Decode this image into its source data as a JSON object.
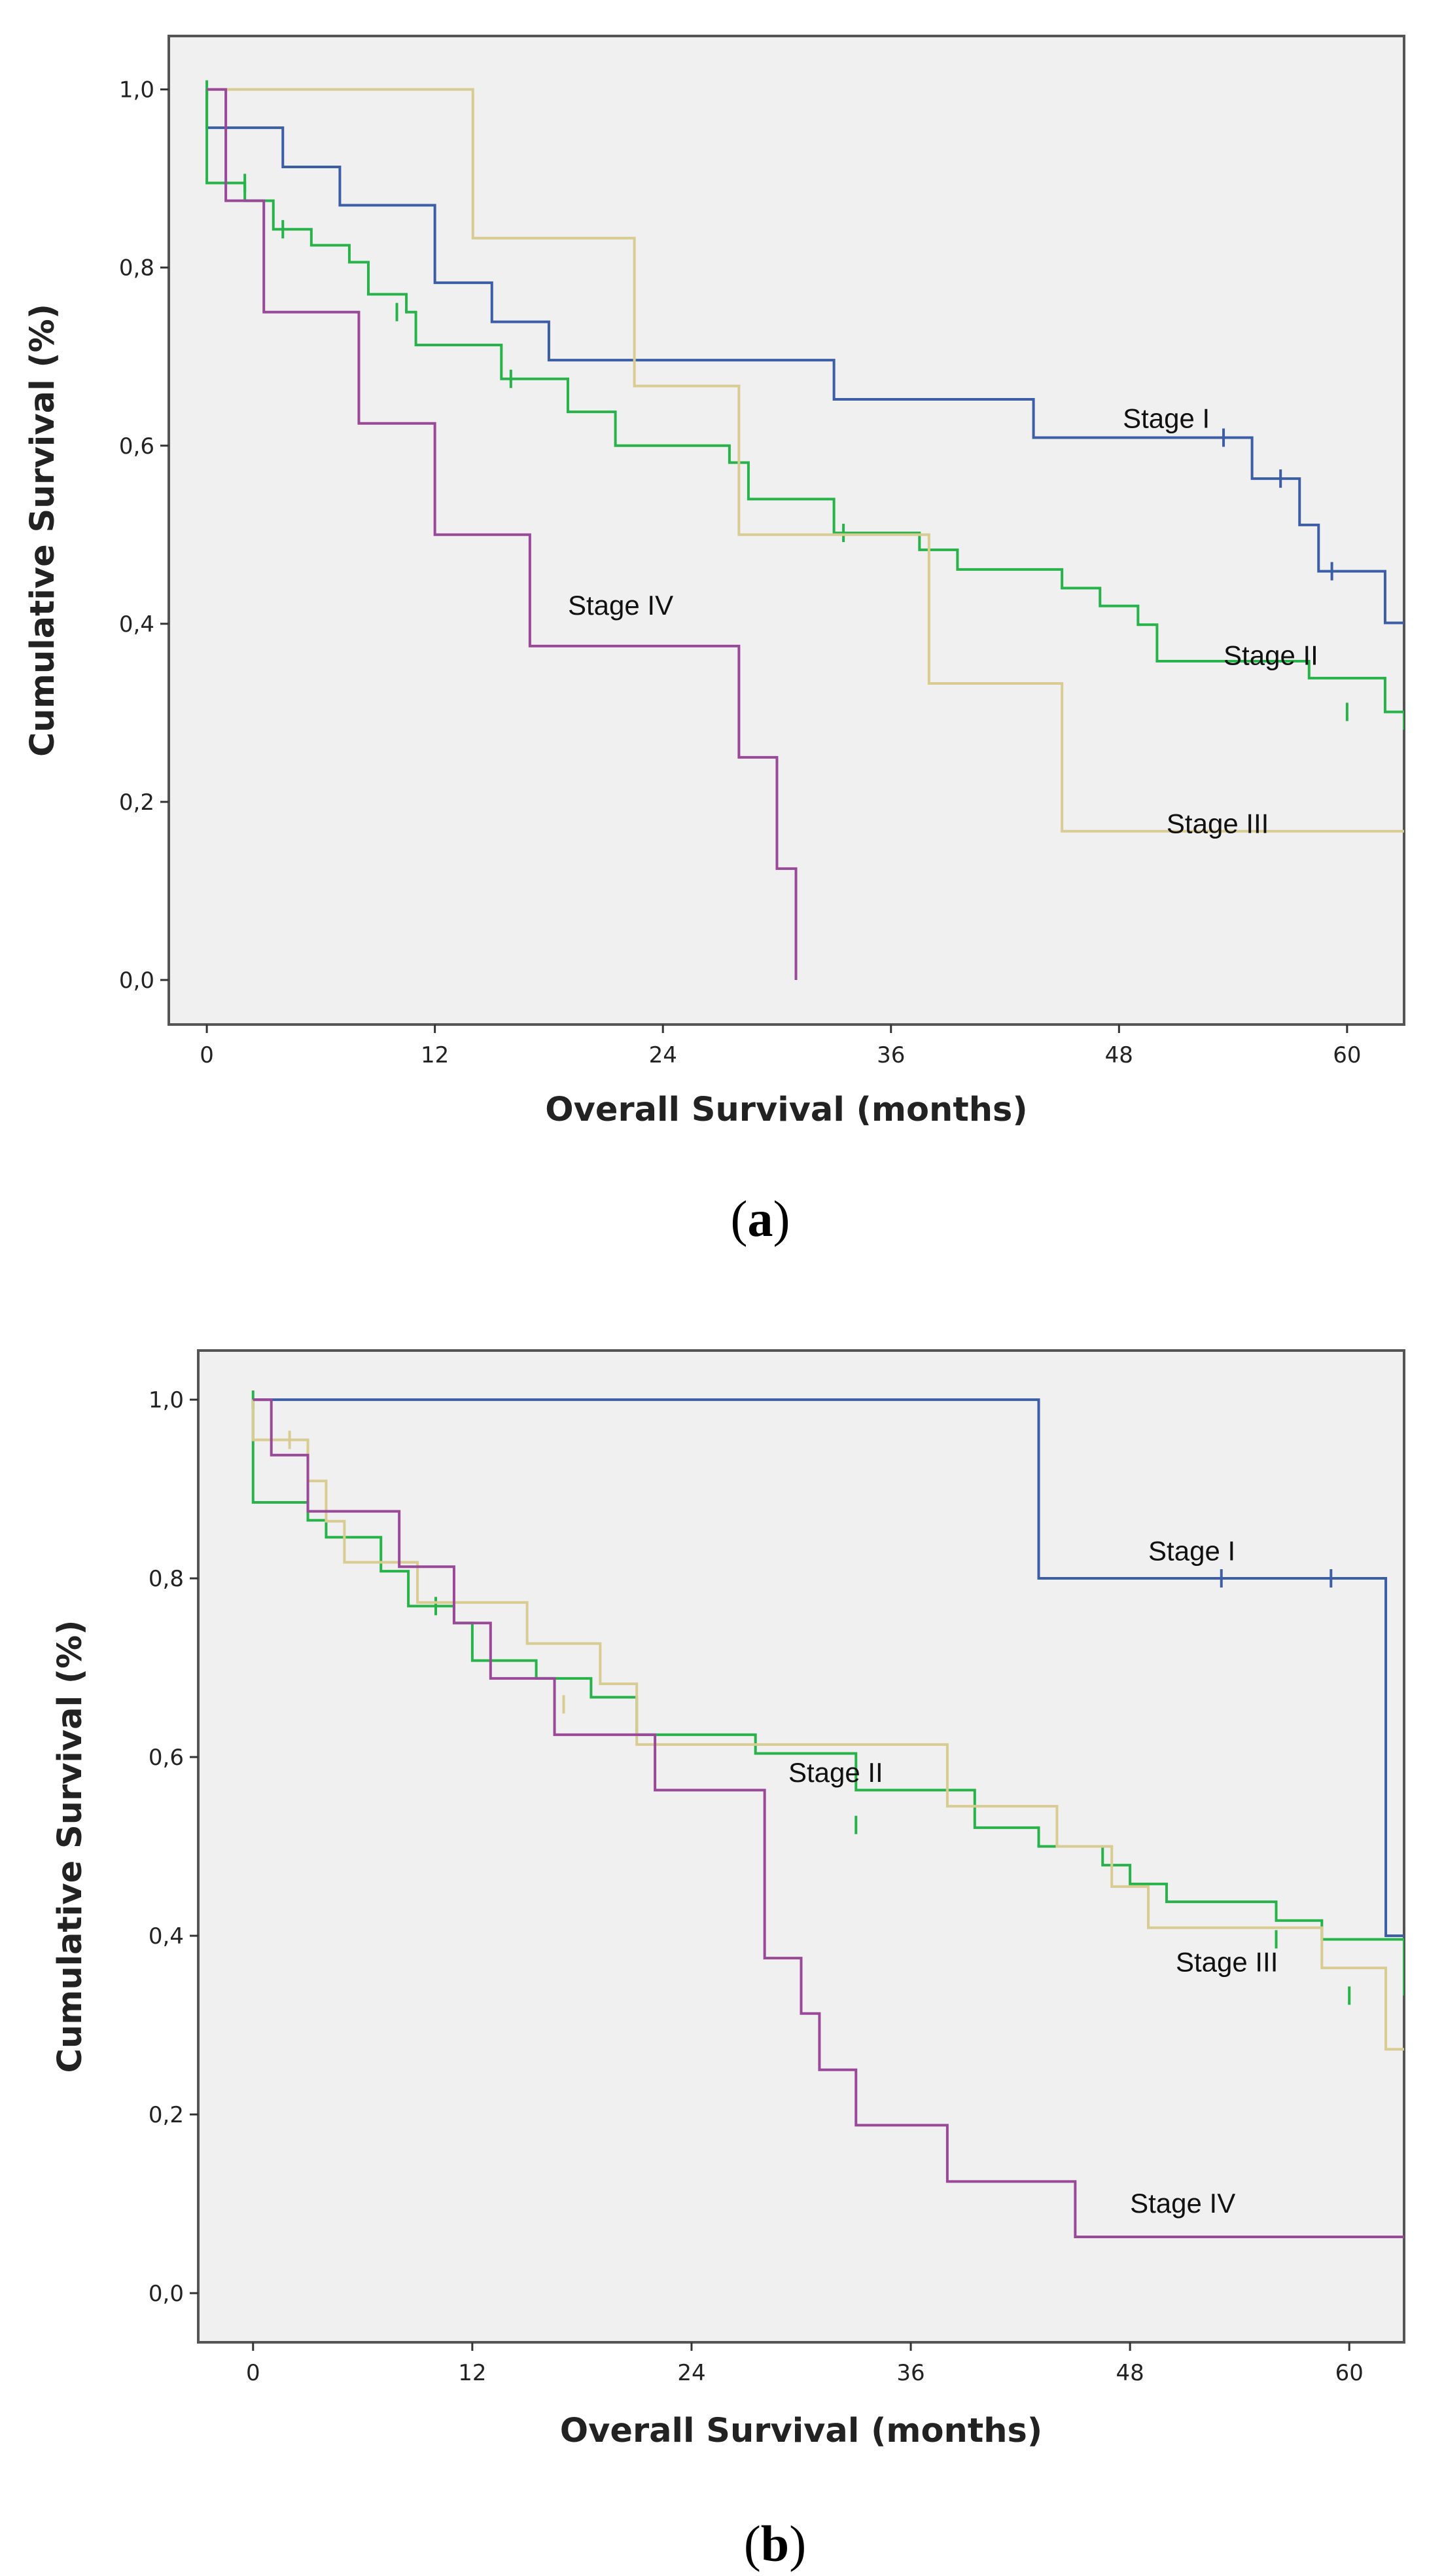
{
  "colors": {
    "Stage I": "#3b5ea6",
    "Stage II": "#27b34a",
    "Stage III": "#d8cc92",
    "Stage IV": "#9a4898",
    "plot_bg": "#f0f0f0",
    "frame": "#555555"
  },
  "chart_data": [
    {
      "type": "line",
      "step": true,
      "panel": "a",
      "panel_label": "a",
      "title": "",
      "xlabel": "Overall Survival (months)",
      "ylabel": "Cumulative Survival (%)",
      "xlim": [
        -2.0,
        63.0
      ],
      "ylim": [
        -0.05,
        1.06
      ],
      "xticks": [
        0,
        12,
        24,
        36,
        48,
        60
      ],
      "yticks": [
        0.0,
        0.2,
        0.4,
        0.6,
        0.8,
        1.0
      ],
      "xtick_labels": [
        "0",
        "12",
        "24",
        "36",
        "48",
        "60"
      ],
      "ytick_labels": [
        "0,0",
        "0,2",
        "0,4",
        "0,6",
        "0,8",
        "1,0"
      ],
      "series": [
        {
          "name": "Stage I",
          "label": "Stage I",
          "label_at": [
            48.2,
            0.62
          ],
          "x": [
            0.0,
            4.0,
            7.0,
            12.0,
            15.0,
            18.0,
            33.0,
            43.5,
            55.0,
            57.5,
            58.5,
            62.0,
            63.0
          ],
          "y": [
            0.957,
            0.913,
            0.87,
            0.783,
            0.739,
            0.696,
            0.652,
            0.609,
            0.563,
            0.511,
            0.459,
            0.401,
            0.401
          ],
          "censor": [
            [
              53.5,
              0.609
            ],
            [
              56.5,
              0.563
            ],
            [
              59.2,
              0.459
            ]
          ]
        },
        {
          "name": "Stage II",
          "label": "Stage II",
          "label_at": [
            53.5,
            0.354
          ],
          "x": [
            0.0,
            2.0,
            3.5,
            5.5,
            7.5,
            8.5,
            10.5,
            11.0,
            15.5,
            19.0,
            21.5,
            27.5,
            28.5,
            33.0,
            37.5,
            39.5,
            45.0,
            47.0,
            49.0,
            50.0,
            58.0,
            62.0,
            63.0
          ],
          "y": [
            0.895,
            0.875,
            0.843,
            0.825,
            0.806,
            0.77,
            0.75,
            0.713,
            0.675,
            0.638,
            0.6,
            0.581,
            0.54,
            0.502,
            0.483,
            0.461,
            0.44,
            0.42,
            0.399,
            0.358,
            0.339,
            0.301,
            0.281
          ],
          "censor": [
            [
              0.0,
              1.0
            ],
            [
              2.0,
              0.895
            ],
            [
              4.0,
              0.843
            ],
            [
              10.0,
              0.75
            ],
            [
              16.0,
              0.675
            ],
            [
              33.5,
              0.502
            ],
            [
              60.0,
              0.301
            ]
          ]
        },
        {
          "name": "Stage III",
          "label": "Stage III",
          "label_at": [
            50.5,
            0.165
          ],
          "x": [
            0.0,
            14.0,
            22.5,
            28.0,
            38.0,
            45.0,
            63.0
          ],
          "y": [
            1.0,
            0.833,
            0.667,
            0.5,
            0.333,
            0.167,
            0.167
          ],
          "censor": []
        },
        {
          "name": "Stage IV",
          "label": "Stage IV",
          "label_at": [
            19.0,
            0.41
          ],
          "x": [
            0.0,
            1.0,
            3.0,
            8.0,
            12.0,
            17.0,
            28.0,
            30.0,
            31.0
          ],
          "y": [
            1.0,
            0.875,
            0.75,
            0.625,
            0.5,
            0.375,
            0.25,
            0.125,
            0.0
          ],
          "censor": []
        }
      ]
    },
    {
      "type": "line",
      "step": true,
      "panel": "b",
      "panel_label": "b",
      "title": "",
      "xlabel": "Overall Survival (months)",
      "ylabel": "Cumulative Survival (%)",
      "xlim": [
        -3.0,
        63.0
      ],
      "ylim": [
        -0.055,
        1.055
      ],
      "xticks": [
        0,
        12,
        24,
        36,
        48,
        60
      ],
      "yticks": [
        0.0,
        0.2,
        0.4,
        0.6,
        0.8,
        1.0
      ],
      "xtick_labels": [
        "0",
        "12",
        "24",
        "36",
        "48",
        "60"
      ],
      "ytick_labels": [
        "0,0",
        "0,2",
        "0,4",
        "0,6",
        "0,8",
        "1,0"
      ],
      "series": [
        {
          "name": "Stage I",
          "label": "Stage I",
          "label_at": [
            49.0,
            0.82
          ],
          "x": [
            0.0,
            43.0,
            62.0,
            63.0
          ],
          "y": [
            1.0,
            0.8,
            0.4,
            0.4
          ],
          "censor": [
            [
              53.0,
              0.8
            ],
            [
              59.0,
              0.8
            ]
          ]
        },
        {
          "name": "Stage II",
          "label": "Stage II",
          "label_at": [
            29.3,
            0.572
          ],
          "x": [
            0.0,
            3.0,
            4.0,
            7.0,
            8.5,
            11.0,
            12.0,
            15.5,
            18.5,
            21.0,
            27.5,
            33.0,
            39.5,
            43.0,
            46.5,
            48.0,
            50.0,
            56.0,
            58.5,
            63.0
          ],
          "y": [
            0.885,
            0.865,
            0.846,
            0.808,
            0.769,
            0.75,
            0.708,
            0.688,
            0.667,
            0.625,
            0.604,
            0.563,
            0.521,
            0.5,
            0.479,
            0.458,
            0.438,
            0.417,
            0.396,
            0.333
          ],
          "censor": [
            [
              0.0,
              1.0
            ],
            [
              10.0,
              0.769
            ],
            [
              33.0,
              0.524
            ],
            [
              56.0,
              0.396
            ],
            [
              60.0,
              0.333
            ]
          ]
        },
        {
          "name": "Stage III",
          "label": "Stage III",
          "label_at": [
            50.5,
            0.36
          ],
          "x": [
            0.0,
            3.0,
            4.0,
            5.0,
            9.0,
            15.0,
            19.0,
            21.0,
            38.0,
            44.0,
            47.0,
            49.0,
            58.5,
            62.0,
            63.0
          ],
          "y": [
            0.955,
            0.909,
            0.864,
            0.818,
            0.773,
            0.727,
            0.682,
            0.614,
            0.545,
            0.5,
            0.455,
            0.409,
            0.364,
            0.273,
            0.273
          ],
          "censor": [
            [
              2.0,
              0.955
            ],
            [
              17.0,
              0.659
            ]
          ]
        },
        {
          "name": "Stage IV",
          "label": "Stage IV",
          "label_at": [
            48.0,
            0.09
          ],
          "x": [
            0.0,
            1.0,
            3.0,
            8.0,
            11.0,
            13.0,
            16.5,
            22.0,
            28.0,
            30.0,
            31.0,
            33.0,
            38.0,
            45.0,
            63.0
          ],
          "y": [
            1.0,
            0.938,
            0.875,
            0.813,
            0.75,
            0.688,
            0.625,
            0.563,
            0.375,
            0.313,
            0.25,
            0.188,
            0.125,
            0.063,
            0.063
          ],
          "censor": []
        }
      ]
    }
  ]
}
